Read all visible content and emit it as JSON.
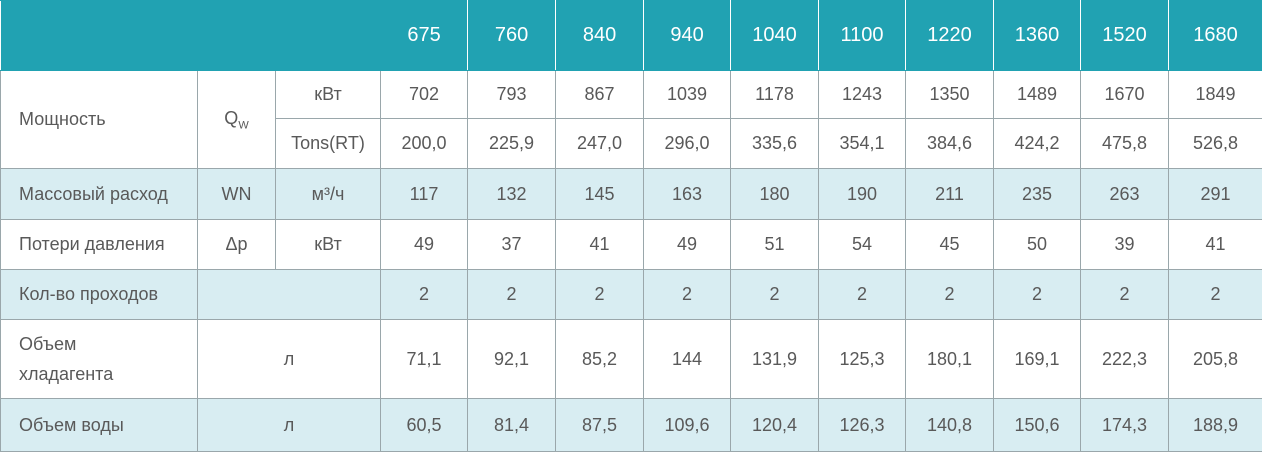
{
  "table": {
    "models": [
      "675",
      "760",
      "840",
      "940",
      "1040",
      "1100",
      "1220",
      "1360",
      "1520",
      "1680"
    ],
    "power": {
      "label": "Мощность",
      "symbol": "Q",
      "symbol_sub": "W",
      "rows": [
        {
          "unit": "кВт",
          "values": [
            "702",
            "793",
            "867",
            "1039",
            "1178",
            "1243",
            "1350",
            "1489",
            "1670",
            "1849"
          ]
        },
        {
          "unit": "Tons(RT)",
          "values": [
            "200,0",
            "225,9",
            "247,0",
            "296,0",
            "335,6",
            "354,1",
            "384,6",
            "424,2",
            "475,8",
            "526,8"
          ]
        }
      ]
    },
    "rows": [
      {
        "label": "Массовый расход",
        "symbol": "WN",
        "unit": "м³/ч",
        "values": [
          "117",
          "132",
          "145",
          "163",
          "180",
          "190",
          "211",
          "235",
          "263",
          "291"
        ]
      },
      {
        "label": "Потери давления",
        "symbol": "Δp",
        "unit": "кВт",
        "values": [
          "49",
          "37",
          "41",
          "49",
          "51",
          "54",
          "45",
          "50",
          "39",
          "41"
        ]
      },
      {
        "label": "Кол-во проходов",
        "values": [
          "2",
          "2",
          "2",
          "2",
          "2",
          "2",
          "2",
          "2",
          "2",
          "2"
        ]
      },
      {
        "label": "Объем хладагента",
        "unit": "л",
        "values": [
          "71,1",
          "92,1",
          "85,2",
          "144",
          "131,9",
          "125,3",
          "180,1",
          "169,1",
          "222,3",
          "205,8"
        ]
      },
      {
        "label": "Объем воды",
        "unit": "л",
        "values": [
          "60,5",
          "81,4",
          "87,5",
          "109,6",
          "120,4",
          "126,3",
          "140,8",
          "150,6",
          "174,3",
          "188,9"
        ]
      }
    ]
  }
}
